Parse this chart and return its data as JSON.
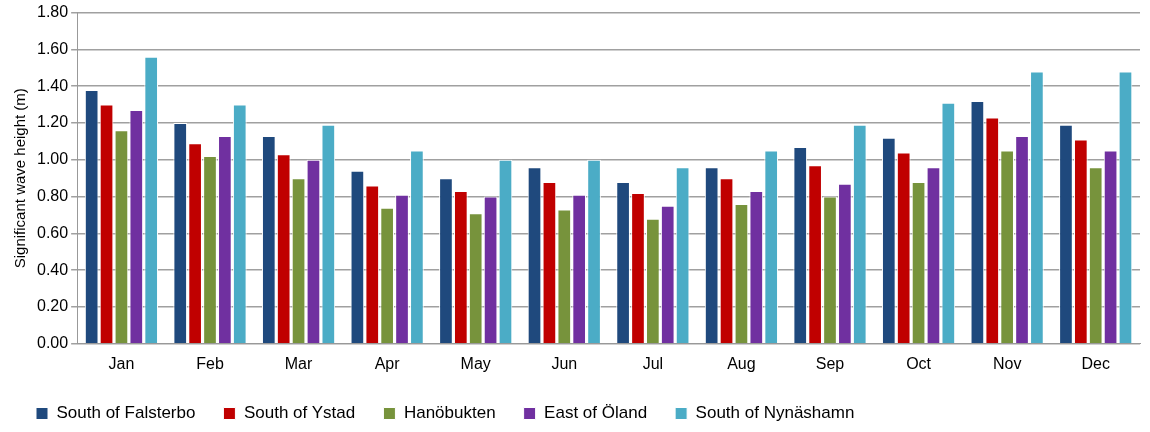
{
  "chart_data": {
    "type": "bar",
    "ylabel": "Significant wave height (m)",
    "categories": [
      "Jan",
      "Feb",
      "Mar",
      "Apr",
      "May",
      "Jun",
      "Jul",
      "Aug",
      "Sep",
      "Oct",
      "Nov",
      "Dec"
    ],
    "series": [
      {
        "name": "South of Falsterbo",
        "color": "#1f497d",
        "values": [
          1.38,
          1.2,
          1.13,
          0.94,
          0.9,
          0.96,
          0.88,
          0.96,
          1.07,
          1.12,
          1.32,
          1.19
        ]
      },
      {
        "name": "South of Ystad",
        "color": "#c00000",
        "values": [
          1.3,
          1.09,
          1.03,
          0.86,
          0.83,
          0.88,
          0.82,
          0.9,
          0.97,
          1.04,
          1.23,
          1.11
        ]
      },
      {
        "name": "Hanöbukten",
        "color": "#77933c",
        "values": [
          1.16,
          1.02,
          0.9,
          0.74,
          0.71,
          0.73,
          0.68,
          0.76,
          0.8,
          0.88,
          1.05,
          0.96
        ]
      },
      {
        "name": "East of Öland",
        "color": "#7030a0",
        "values": [
          1.27,
          1.13,
          1.0,
          0.81,
          0.8,
          0.81,
          0.75,
          0.83,
          0.87,
          0.96,
          1.13,
          1.05
        ]
      },
      {
        "name": "South of Nynäshamn",
        "color": "#4bacc6",
        "values": [
          1.56,
          1.3,
          1.19,
          1.05,
          1.0,
          1.0,
          0.96,
          1.05,
          1.19,
          1.31,
          1.48,
          1.48
        ]
      }
    ],
    "ylim": [
      0,
      1.8
    ],
    "yticks": [
      {
        "value": 0,
        "label": "0.00"
      },
      {
        "value": 0.2,
        "label": "0.20"
      },
      {
        "value": 0.4,
        "label": "0.40"
      },
      {
        "value": 0.6,
        "label": "0.60"
      },
      {
        "value": 0.8,
        "label": "0.80"
      },
      {
        "value": 1.0,
        "label": "1.00"
      },
      {
        "value": 1.2,
        "label": "1.20"
      },
      {
        "value": 1.4,
        "label": "1.40"
      },
      {
        "value": 1.6,
        "label": "1.60"
      },
      {
        "value": 1.8,
        "label": "1.80"
      }
    ],
    "grid": "y",
    "legend": "bottom"
  }
}
